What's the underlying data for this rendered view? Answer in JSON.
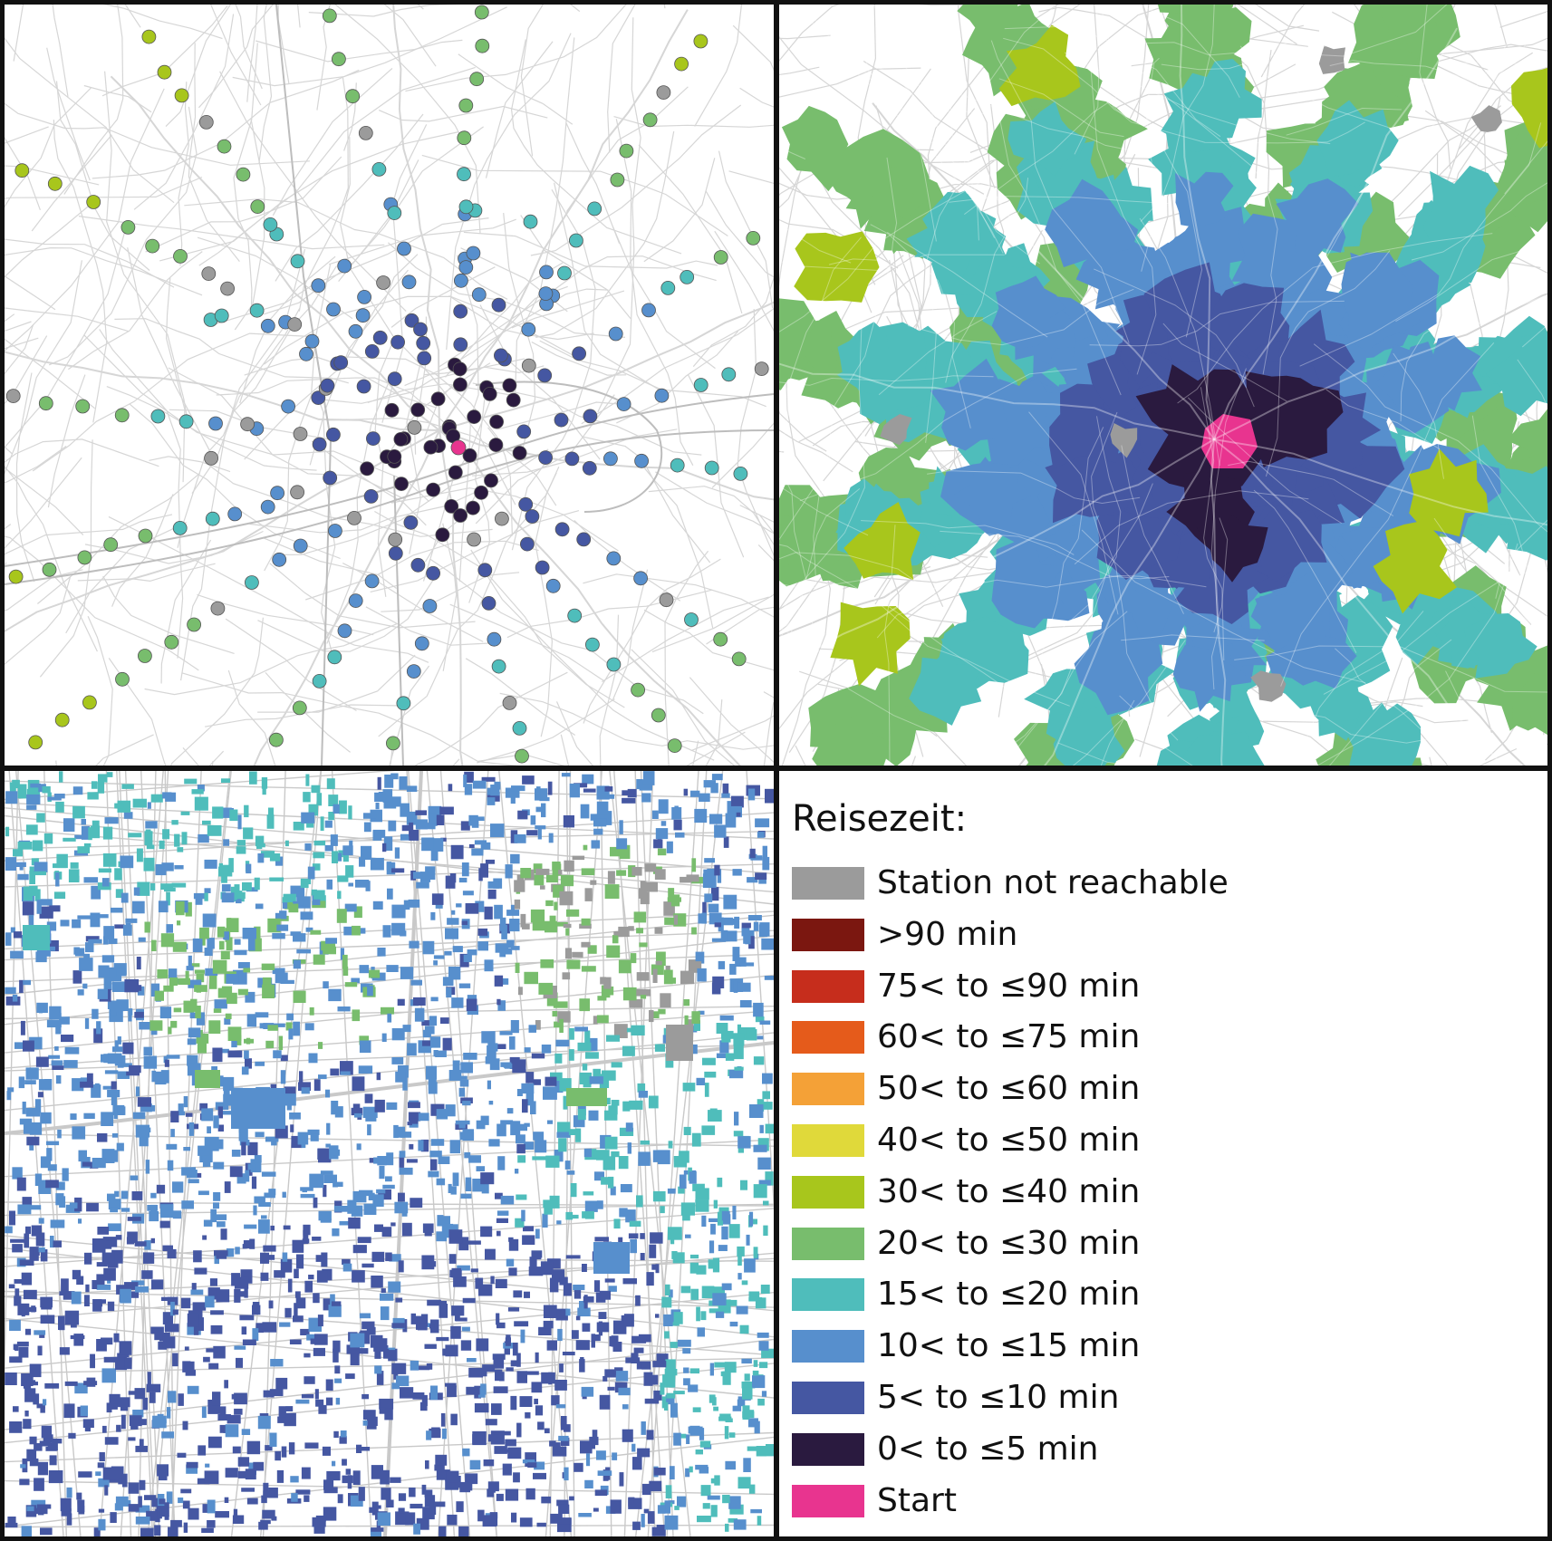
{
  "legend": {
    "title": "Reisezeit:",
    "items": [
      {
        "label": "Station not reachable",
        "color": "#9b9b9b"
      },
      {
        "label": ">90 min",
        "color": "#7b1710"
      },
      {
        "label": "75< to ≤90 min",
        "color": "#c62d1c"
      },
      {
        "label": "60< to ≤75 min",
        "color": "#e55b1b"
      },
      {
        "label": "50< to ≤60 min",
        "color": "#f4a137"
      },
      {
        "label": "40< to ≤50 min",
        "color": "#e0d93a"
      },
      {
        "label": "30< to ≤40 min",
        "color": "#a8c61c"
      },
      {
        "label": "20< to ≤30 min",
        "color": "#78bd6d"
      },
      {
        "label": "15< to ≤20 min",
        "color": "#4fbdbb"
      },
      {
        "label": "10< to ≤15 min",
        "color": "#578fcd"
      },
      {
        "label": "5< to ≤10 min",
        "color": "#4557a2"
      },
      {
        "label": "0< to ≤5 min",
        "color": "#2a1a3f"
      },
      {
        "label": "Start",
        "color": "#e8348f"
      }
    ]
  },
  "panels": {
    "stations": "station-point-map",
    "isochrones": "isochrone-area-map",
    "buildings": "building-detail-map"
  }
}
